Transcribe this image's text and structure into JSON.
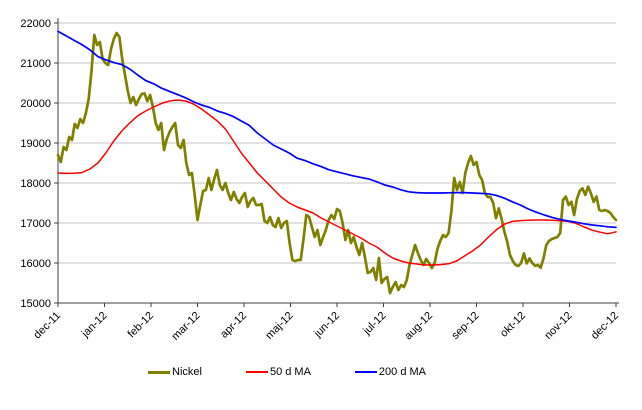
{
  "page": {
    "background": "#ffffff"
  },
  "chart_data": {
    "type": "line",
    "title": "",
    "xlabel": "",
    "ylabel": "",
    "grid": "horizontal",
    "legend_position": "bottom",
    "ylim": [
      15000,
      22000
    ],
    "y_ticks": [
      15000,
      16000,
      17000,
      18000,
      19000,
      20000,
      21000,
      22000
    ],
    "x_tick_labels": [
      "dec-11",
      "jan-12",
      "feb-12",
      "mar-12",
      "apr-12",
      "maj-12",
      "jun-12",
      "jul-12",
      "aug-12",
      "sep-12",
      "okt-12",
      "nov-12",
      "dec-12"
    ],
    "colors": {
      "grid": "#c6c6c6",
      "axis": "#404040",
      "text": "#000000"
    },
    "series": [
      {
        "name": "Nickel",
        "color": "#808000",
        "width": 2.7,
        "values": [
          18700,
          18525,
          18900,
          18825,
          19150,
          19075,
          19475,
          19375,
          19600,
          19500,
          19750,
          20100,
          20800,
          21700,
          21450,
          21525,
          21100,
          21000,
          20950,
          21350,
          21600,
          21750,
          21650,
          21100,
          20700,
          20300,
          20000,
          20150,
          19950,
          20100,
          20225,
          20240,
          20050,
          20200,
          19900,
          19500,
          19325,
          19500,
          18825,
          19100,
          19275,
          19400,
          19500,
          18950,
          18875,
          19075,
          18500,
          18200,
          18250,
          17700,
          17075,
          17450,
          17800,
          17825,
          18125,
          17825,
          18100,
          18325,
          17950,
          17825,
          18000,
          17750,
          17575,
          17775,
          17600,
          17500,
          17650,
          17750,
          17400,
          17550,
          17625,
          17450,
          17450,
          17475,
          17050,
          17000,
          17150,
          16950,
          16900,
          17125,
          16875,
          17000,
          17050,
          16500,
          16075,
          16050,
          16075,
          16075,
          16600,
          17200,
          17150,
          16900,
          16650,
          16825,
          16450,
          16650,
          16825,
          17075,
          17200,
          17100,
          17350,
          17300,
          17000,
          16575,
          16825,
          16500,
          16650,
          16400,
          16200,
          16500,
          16150,
          15750,
          15775,
          15875,
          15575,
          16125,
          15500,
          15600,
          15650,
          15250,
          15400,
          15525,
          15325,
          15450,
          15400,
          15575,
          15950,
          16200,
          16450,
          16250,
          16075,
          15950,
          16100,
          16000,
          15875,
          16000,
          16350,
          16550,
          16700,
          16650,
          16750,
          17300,
          18125,
          17825,
          18025,
          17750,
          18250,
          18500,
          18675,
          18450,
          18525,
          18200,
          18075,
          17750,
          17650,
          17650,
          17500,
          17120,
          17365,
          17100,
          16780,
          16530,
          16200,
          16050,
          15950,
          15925,
          16000,
          16240,
          15990,
          16115,
          16000,
          15930,
          15950,
          15880,
          16115,
          16450,
          16550,
          16600,
          16625,
          16650,
          16750,
          17575,
          17660,
          17450,
          17530,
          17200,
          17600,
          17800,
          17865,
          17700,
          17910,
          17740,
          17530,
          17660,
          17325,
          17300,
          17325,
          17300,
          17250,
          17150,
          17075
        ]
      },
      {
        "name": "50 d MA",
        "color": "#ff0000",
        "width": 1.5,
        "values": [
          18250,
          18240,
          18245,
          18260,
          18350,
          18500,
          18750,
          19050,
          19300,
          19500,
          19680,
          19800,
          19900,
          19990,
          20050,
          20075,
          20050,
          19975,
          19850,
          19700,
          19550,
          19350,
          19050,
          18750,
          18500,
          18250,
          18050,
          17850,
          17650,
          17500,
          17400,
          17325,
          17250,
          17125,
          17025,
          16925,
          16825,
          16725,
          16625,
          16500,
          16400,
          16250,
          16125,
          16050,
          16000,
          15975,
          15950,
          15950,
          15960,
          15980,
          16050,
          16175,
          16300,
          16450,
          16650,
          16830,
          16970,
          17040,
          17060,
          17070,
          17075,
          17075,
          17070,
          17055,
          17040,
          16990,
          16900,
          16820,
          16770,
          16730,
          16780
        ]
      },
      {
        "name": "200 d MA",
        "color": "#0000ff",
        "width": 1.7,
        "values": [
          21790,
          21680,
          21570,
          21460,
          21330,
          21160,
          21080,
          21010,
          20960,
          20850,
          20700,
          20560,
          20480,
          20370,
          20290,
          20210,
          20130,
          20030,
          19950,
          19890,
          19800,
          19740,
          19660,
          19550,
          19440,
          19250,
          19100,
          18950,
          18850,
          18750,
          18620,
          18560,
          18480,
          18410,
          18330,
          18280,
          18230,
          18180,
          18140,
          18100,
          18030,
          17950,
          17900,
          17830,
          17780,
          17760,
          17750,
          17750,
          17750,
          17755,
          17760,
          17760,
          17750,
          17740,
          17730,
          17690,
          17620,
          17530,
          17450,
          17350,
          17270,
          17200,
          17140,
          17090,
          17050,
          17020,
          16980,
          16950,
          16930,
          16905,
          16890
        ]
      }
    ]
  }
}
